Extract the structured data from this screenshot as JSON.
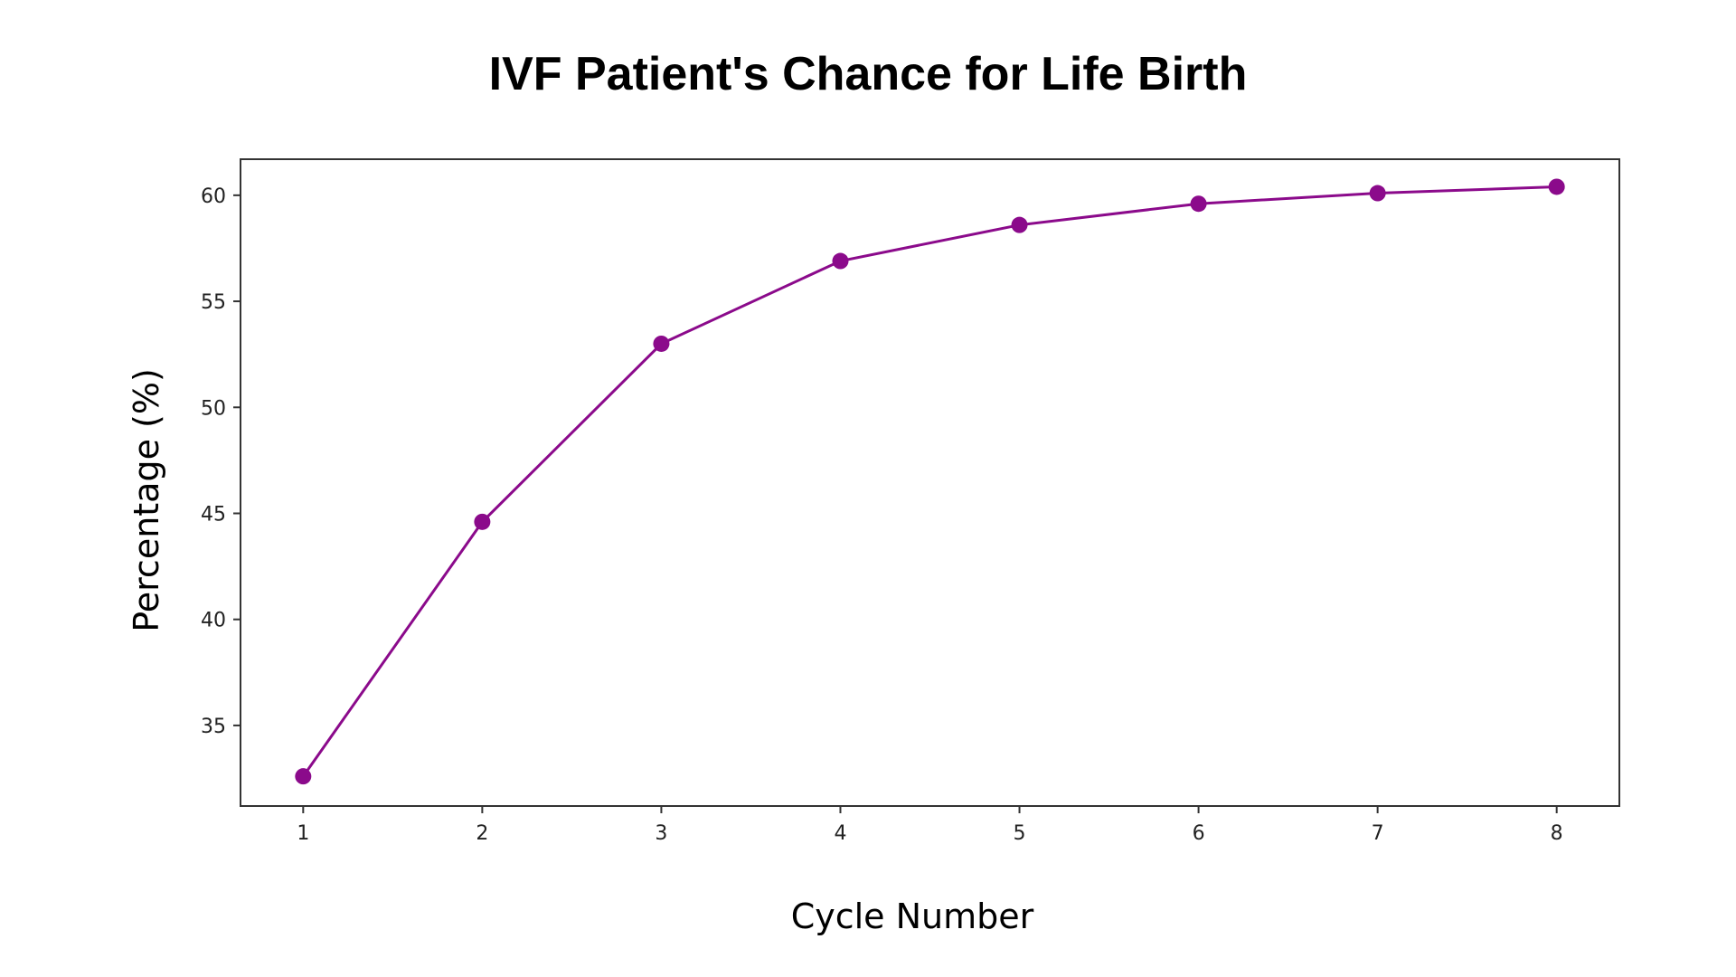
{
  "chart_data": {
    "type": "line",
    "title": "IVF Patient's Chance for Life Birth",
    "xlabel": "Cycle Number",
    "ylabel": "Percentage (%)",
    "x": [
      1,
      2,
      3,
      4,
      5,
      6,
      7,
      8
    ],
    "series": [
      {
        "values": [
          32.6,
          44.6,
          53.0,
          56.9,
          58.6,
          59.6,
          60.1,
          60.4
        ]
      }
    ],
    "xticks": [
      1,
      2,
      3,
      4,
      5,
      6,
      7,
      8
    ],
    "yticks": [
      35,
      40,
      45,
      50,
      55,
      60
    ],
    "xlim": [
      0.65,
      8.35
    ],
    "ylim": [
      31.2,
      61.7
    ],
    "grid": false,
    "line_color": "#8b0a8b",
    "marker": "circle"
  }
}
